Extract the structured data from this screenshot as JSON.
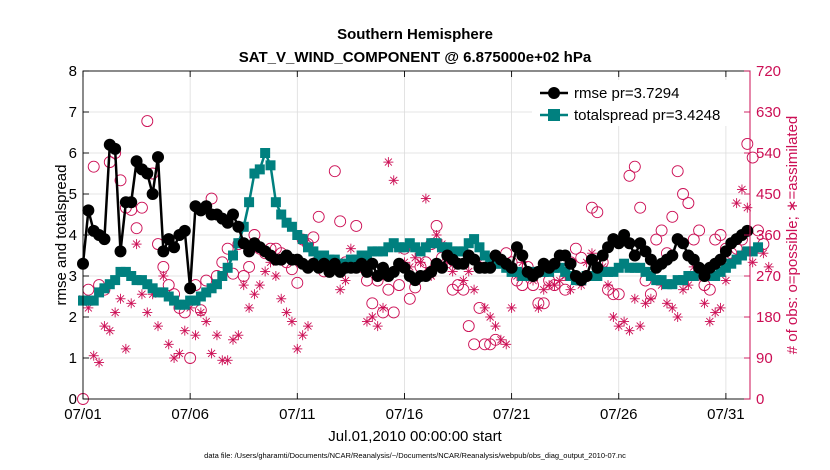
{
  "chart_data": {
    "type": "line",
    "title_line1": "Southern Hemisphere",
    "title_line2": "SAT_V_WIND_COMPONENT @ 6.875000e+02 hPa",
    "xlabel": "Jul.01,2010 00:00:00 start",
    "ylabel_left": "rmse and totalspread",
    "ylabel_right": "# of obs: o=possible; ∗=assimilated",
    "footnote": "data file: /Users/gharamti/Documents/NCAR/Reanalysis/~/Documents/NCAR/Reanalysis/webpub/obs_diag_output_2010-07.nc",
    "xlim": [
      0,
      31.125
    ],
    "ylim_left": [
      0,
      8
    ],
    "ylim_right": [
      0,
      720
    ],
    "x_ticks": [
      0,
      5,
      10,
      15,
      20,
      25,
      30
    ],
    "x_tick_labels": [
      "07/01",
      "07/06",
      "07/11",
      "07/16",
      "07/21",
      "07/26",
      "07/31"
    ],
    "y_left_ticks": [
      "0",
      "1",
      "2",
      "3",
      "4",
      "5",
      "6",
      "7",
      "8"
    ],
    "y_right_ticks": [
      "0",
      "90",
      "180",
      "270",
      "360",
      "450",
      "540",
      "630",
      "720"
    ],
    "colors": {
      "rmse": "#000000",
      "spread": "#00807f",
      "obs": "#cc0f55",
      "axes": "#000000"
    },
    "series": [
      {
        "name": "rmse",
        "legend": "rmse pr=3.7294",
        "axis": "left",
        "values": [
          3.3,
          4.6,
          4.1,
          4.0,
          3.9,
          6.2,
          6.1,
          3.6,
          4.8,
          4.8,
          5.8,
          5.6,
          5.5,
          5.0,
          5.9,
          3.6,
          3.9,
          3.7,
          4.0,
          4.1,
          2.7,
          4.7,
          4.6,
          4.7,
          4.5,
          4.5,
          4.4,
          4.3,
          4.5,
          4.2,
          3.8,
          3.6,
          3.8,
          3.7,
          3.6,
          3.5,
          3.4,
          3.4,
          3.5,
          3.4,
          3.4,
          3.3,
          3.2,
          3.3,
          3.2,
          3.3,
          3.1,
          3.3,
          3.1,
          3.2,
          3.2,
          3.2,
          3.3,
          3.1,
          3.3,
          3.0,
          3.2,
          3.0,
          3.1,
          3.3,
          3.2,
          3.0,
          2.9,
          3.0,
          3.0,
          3.1,
          3.3,
          3.2,
          3.5,
          3.4,
          3.3,
          3.3,
          3.5,
          3.4,
          3.2,
          3.2,
          3.2,
          3.5,
          3.4,
          3.3,
          3.2,
          3.7,
          3.5,
          3.1,
          3.0,
          3.1,
          3.3,
          3.2,
          3.3,
          3.5,
          3.5,
          3.3,
          3.0,
          2.9,
          3.0,
          3.4,
          3.2,
          3.5,
          3.7,
          3.9,
          3.8,
          4.0,
          3.8,
          3.5,
          3.8,
          3.6,
          3.4,
          3.2,
          3.3,
          3.4,
          3.5,
          3.9,
          3.8,
          3.5,
          3.4,
          3.2,
          3.0,
          3.2,
          3.3,
          3.4,
          3.6,
          3.8,
          3.9,
          4.0,
          4.1
        ]
      },
      {
        "name": "totalspread",
        "legend": "totalspread pr=3.4248",
        "axis": "left",
        "values": [
          2.4,
          2.4,
          2.4,
          2.6,
          2.7,
          2.8,
          2.9,
          3.1,
          3.1,
          3.0,
          2.9,
          2.9,
          2.8,
          2.7,
          2.6,
          2.6,
          2.5,
          2.4,
          2.3,
          2.3,
          2.4,
          2.4,
          2.5,
          2.6,
          2.7,
          2.8,
          3.0,
          3.2,
          3.5,
          3.8,
          4.2,
          4.8,
          5.5,
          5.6,
          6.0,
          5.7,
          4.8,
          4.5,
          4.3,
          4.2,
          4.0,
          3.9,
          3.7,
          3.6,
          3.5,
          3.5,
          3.4,
          3.4,
          3.3,
          3.3,
          3.4,
          3.4,
          3.5,
          3.5,
          3.6,
          3.6,
          3.6,
          3.7,
          3.8,
          3.7,
          3.7,
          3.8,
          3.7,
          3.6,
          3.7,
          3.8,
          3.8,
          3.7,
          3.7,
          3.6,
          3.6,
          3.6,
          3.8,
          3.9,
          3.7,
          3.5,
          3.4,
          3.3,
          3.3,
          3.2,
          3.1,
          3.1,
          3.0,
          3.0,
          3.1,
          3.1,
          3.1,
          3.1,
          3.2,
          3.2,
          3.1,
          3.0,
          2.9,
          2.9,
          3.0,
          3.0,
          3.0,
          3.1,
          3.1,
          3.1,
          3.2,
          3.3,
          3.2,
          3.2,
          3.2,
          3.1,
          3.0,
          2.9,
          2.9,
          2.8,
          2.8,
          2.9,
          2.9,
          3.0,
          3.0,
          3.1,
          3.1,
          3.0,
          3.0,
          3.1,
          3.2,
          3.3,
          3.4,
          3.5,
          3.6,
          3.6,
          3.7
        ]
      },
      {
        "name": "obs_possible",
        "legend": "possible",
        "axis": "right",
        "values": [
          0,
          240,
          510,
          250,
          240,
          520,
          540,
          480,
          420,
          415,
          375,
          420,
          610,
          495,
          340,
          290,
          250,
          230,
          200,
          190,
          90,
          250,
          195,
          260,
          440,
          270,
          300,
          330,
          275,
          340,
          270,
          290,
          360,
          330,
          320,
          330,
          330,
          320,
          300,
          285,
          255,
          350,
          340,
          355,
          400,
          280,
          290,
          500,
          390,
          300,
          300,
          380,
          290,
          260,
          210,
          260,
          190,
          240,
          190,
          250,
          330,
          220,
          245,
          290,
          300,
          340,
          380,
          310,
          300,
          240,
          250,
          240,
          160,
          120,
          200,
          120,
          120,
          130,
          300,
          320,
          300,
          260,
          250,
          290,
          250,
          210,
          210,
          260,
          250,
          300,
          240,
          300,
          330,
          310,
          270,
          420,
          410,
          300,
          240,
          230,
          230,
          350,
          490,
          510,
          420,
          260,
          230,
          350,
          370,
          320,
          400,
          500,
          450,
          430,
          350,
          370,
          250,
          240,
          350,
          360,
          330,
          320,
          330,
          350,
          560,
          530,
          370,
          340
        ]
      },
      {
        "name": "obs_assimilated",
        "legend": "assimilated",
        "axis": "right",
        "values": [
          220,
          200,
          95,
          80,
          160,
          150,
          190,
          220,
          110,
          210,
          340,
          230,
          190,
          230,
          160,
          270,
          120,
          90,
          100,
          150,
          200,
          140,
          190,
          170,
          100,
          140,
          85,
          85,
          130,
          140,
          250,
          200,
          230,
          250,
          280,
          300,
          270,
          220,
          190,
          170,
          110,
          140,
          160,
          300,
          290,
          310,
          280,
          300,
          240,
          260,
          330,
          290,
          290,
          170,
          180,
          160,
          200,
          520,
          480,
          330,
          300,
          290,
          310,
          300,
          440,
          270,
          360,
          340,
          300,
          280,
          300,
          260,
          280,
          240,
          300,
          200,
          180,
          160,
          130,
          120,
          200,
          270,
          300,
          280,
          260,
          200,
          240,
          250,
          250,
          260,
          270,
          240,
          260,
          250,
          300,
          320,
          270,
          290,
          250,
          180,
          160,
          170,
          150,
          220,
          160,
          210,
          220,
          260,
          250,
          210,
          200,
          180,
          240,
          250,
          290,
          270,
          210,
          170,
          190,
          200,
          260,
          300,
          430,
          460,
          420,
          300,
          330,
          320,
          290
        ]
      }
    ]
  }
}
